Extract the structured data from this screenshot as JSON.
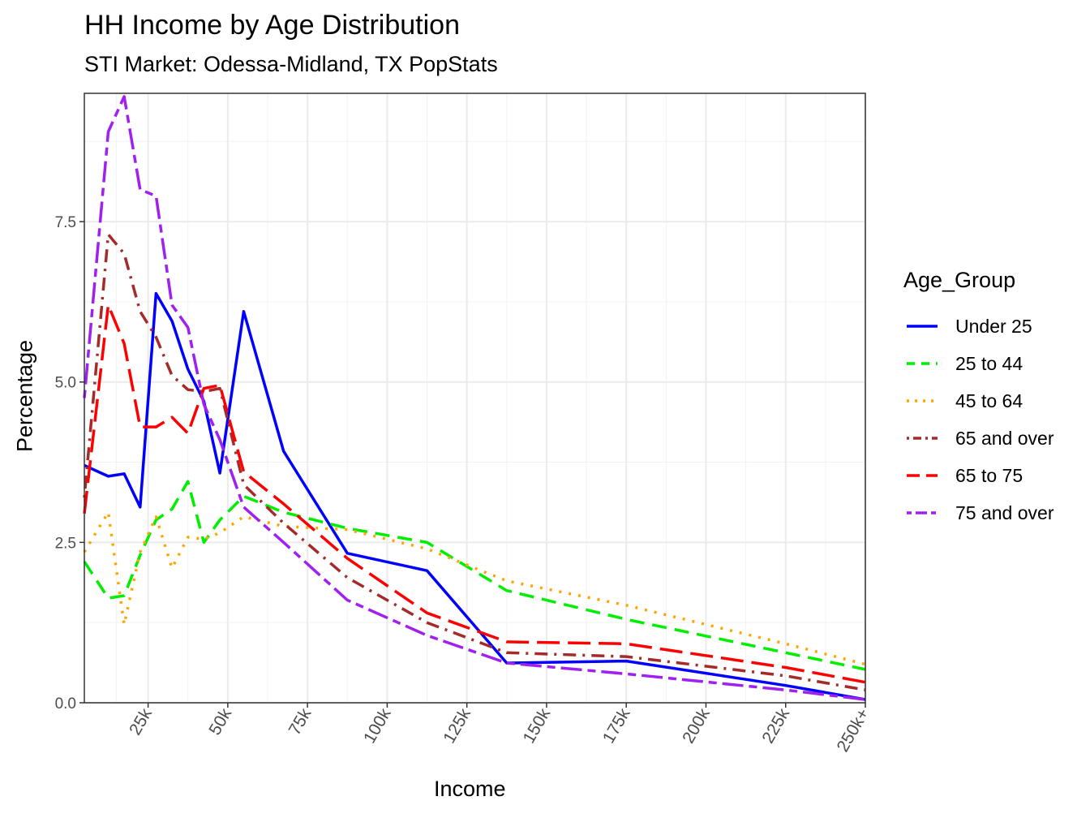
{
  "chart_data": {
    "type": "line",
    "title": "HH Income by Age Distribution",
    "subtitle": "STI Market: Odessa-Midland, TX PopStats",
    "xlabel": "Income",
    "ylabel": "Percentage",
    "xlim": [
      5,
      250
    ],
    "ylim": [
      0,
      9.5
    ],
    "x_ticks": [
      25,
      50,
      75,
      100,
      125,
      150,
      175,
      200,
      225,
      250
    ],
    "x_tick_labels": [
      "25k",
      "50k",
      "75k",
      "100k",
      "125k",
      "150k",
      "175k",
      "200k",
      "225k",
      "250k+"
    ],
    "y_ticks": [
      0,
      2.5,
      5,
      7.5
    ],
    "y_tick_labels": [
      "0.0",
      "2.5",
      "5.0",
      "7.5"
    ],
    "grid": true,
    "legend": {
      "title": "Age_Group",
      "position": "right"
    },
    "x": [
      5,
      12.5,
      17.5,
      22.5,
      27.5,
      32.5,
      37.5,
      42.5,
      47.5,
      55,
      67.5,
      87.5,
      112.5,
      137.5,
      175,
      225,
      250
    ],
    "series": [
      {
        "name": "Under 25",
        "color": "#0000ff",
        "dash": "solid",
        "values": [
          3.7,
          3.53,
          3.57,
          3.05,
          6.38,
          5.95,
          5.2,
          4.7,
          3.58,
          6.1,
          3.92,
          2.33,
          2.06,
          0.62,
          0.65,
          0.27,
          0.05
        ]
      },
      {
        "name": "25 to 44",
        "color": "#00ee00",
        "dash": "dashed",
        "values": [
          2.2,
          1.63,
          1.67,
          2.3,
          2.85,
          3.02,
          3.45,
          2.5,
          2.85,
          3.22,
          2.97,
          2.72,
          2.5,
          1.75,
          1.3,
          0.78,
          0.52
        ]
      },
      {
        "name": "45 to 64",
        "color": "#ffa500",
        "dash": "dotted",
        "values": [
          2.35,
          2.97,
          1.22,
          2.35,
          2.9,
          2.1,
          2.58,
          2.55,
          2.65,
          2.9,
          2.75,
          2.7,
          2.4,
          1.9,
          1.52,
          0.92,
          0.6
        ]
      },
      {
        "name": "65 and over",
        "color": "#a52a2a",
        "dash": "dotdash",
        "values": [
          3.2,
          7.3,
          7.0,
          6.1,
          5.7,
          5.1,
          4.88,
          4.85,
          4.9,
          3.4,
          2.8,
          1.95,
          1.25,
          0.78,
          0.72,
          0.42,
          0.2
        ]
      },
      {
        "name": "65 to 75",
        "color": "#ff0000",
        "dash": "longdash",
        "values": [
          2.95,
          6.2,
          5.6,
          4.3,
          4.3,
          4.45,
          4.2,
          4.9,
          4.95,
          3.6,
          3.1,
          2.25,
          1.4,
          0.95,
          0.92,
          0.55,
          0.32
        ]
      },
      {
        "name": "75 and over",
        "color": "#a020f0",
        "dash": "twodash",
        "values": [
          4.75,
          8.9,
          9.45,
          8.0,
          7.9,
          6.2,
          5.85,
          4.65,
          4.1,
          3.05,
          2.5,
          1.6,
          1.05,
          0.62,
          0.45,
          0.2,
          0.05
        ]
      }
    ]
  }
}
